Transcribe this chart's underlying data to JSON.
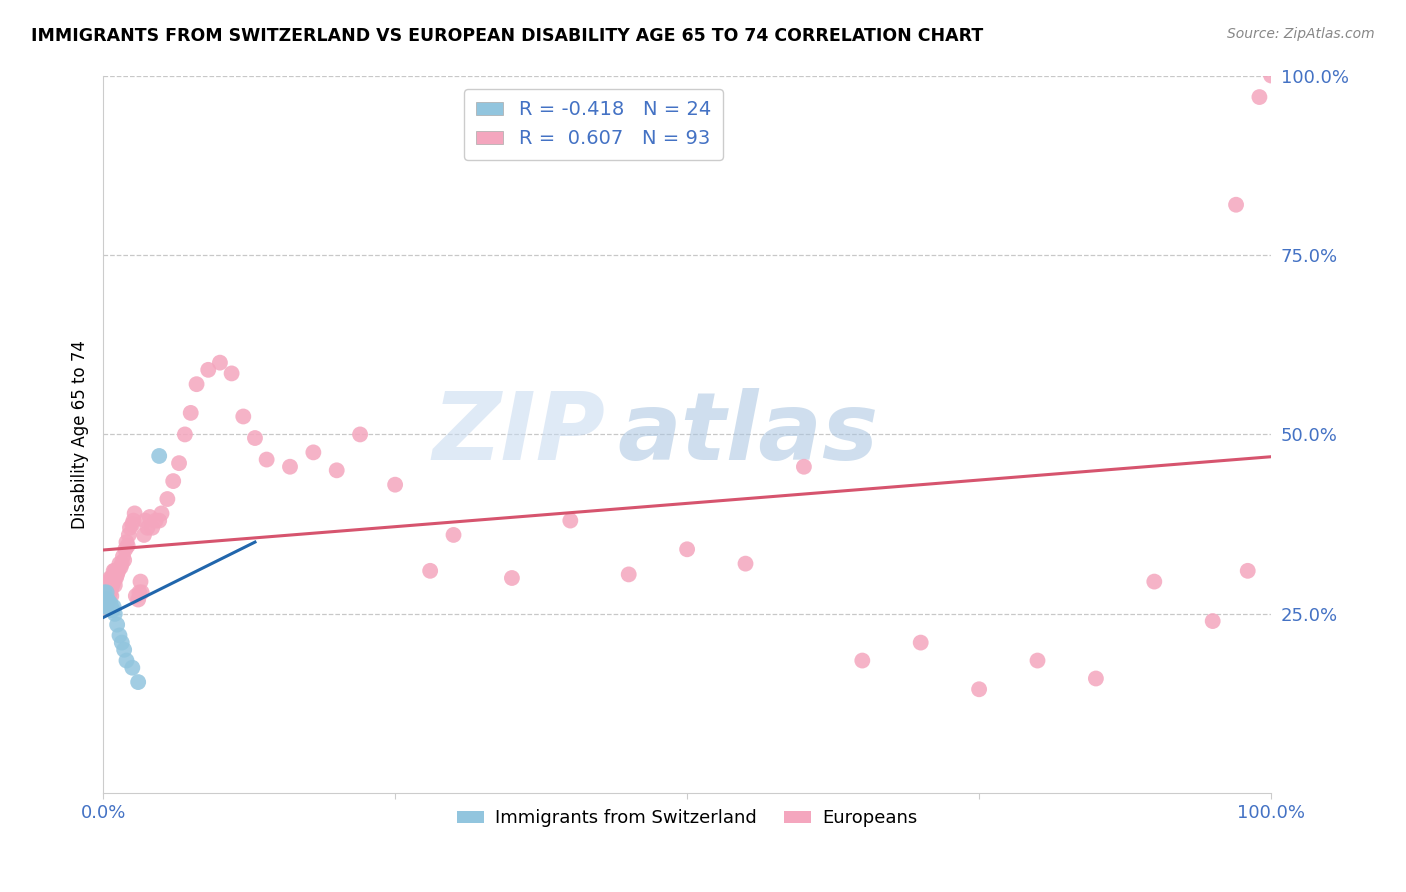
{
  "title": "IMMIGRANTS FROM SWITZERLAND VS EUROPEAN DISABILITY AGE 65 TO 74 CORRELATION CHART",
  "source": "Source: ZipAtlas.com",
  "ylabel": "Disability Age 65 to 74",
  "xlim": [
    0,
    1
  ],
  "ylim": [
    0,
    1
  ],
  "ytick_positions": [
    0.25,
    0.5,
    0.75,
    1.0
  ],
  "ytick_labels": [
    "25.0%",
    "50.0%",
    "75.0%",
    "100.0%"
  ],
  "watermark_zip": "ZIP",
  "watermark_atlas": "atlas",
  "legend_r_swiss": "-0.418",
  "legend_n_swiss": "24",
  "legend_r_euro": "0.607",
  "legend_n_euro": "93",
  "legend_label_swiss": "Immigrants from Switzerland",
  "legend_label_euro": "Europeans",
  "swiss_color": "#92c5de",
  "euro_color": "#f4a6be",
  "swiss_line_color": "#2166ac",
  "euro_line_color": "#d6546e",
  "swiss_x": [
    0.001,
    0.001,
    0.002,
    0.002,
    0.003,
    0.003,
    0.003,
    0.004,
    0.004,
    0.005,
    0.005,
    0.006,
    0.007,
    0.008,
    0.009,
    0.01,
    0.012,
    0.014,
    0.016,
    0.018,
    0.02,
    0.025,
    0.03,
    0.048
  ],
  "swiss_y": [
    0.27,
    0.28,
    0.27,
    0.26,
    0.26,
    0.28,
    0.265,
    0.265,
    0.27,
    0.265,
    0.26,
    0.265,
    0.26,
    0.255,
    0.26,
    0.25,
    0.235,
    0.22,
    0.21,
    0.2,
    0.185,
    0.175,
    0.155,
    0.47
  ],
  "euro_x": [
    0.001,
    0.001,
    0.002,
    0.002,
    0.002,
    0.003,
    0.003,
    0.003,
    0.004,
    0.004,
    0.004,
    0.005,
    0.005,
    0.005,
    0.006,
    0.006,
    0.006,
    0.007,
    0.007,
    0.007,
    0.008,
    0.008,
    0.009,
    0.009,
    0.01,
    0.01,
    0.01,
    0.011,
    0.011,
    0.012,
    0.013,
    0.014,
    0.015,
    0.016,
    0.017,
    0.018,
    0.019,
    0.02,
    0.021,
    0.022,
    0.023,
    0.025,
    0.026,
    0.027,
    0.028,
    0.03,
    0.031,
    0.032,
    0.033,
    0.035,
    0.036,
    0.038,
    0.04,
    0.042,
    0.045,
    0.048,
    0.05,
    0.055,
    0.06,
    0.065,
    0.07,
    0.075,
    0.08,
    0.09,
    0.1,
    0.11,
    0.12,
    0.13,
    0.14,
    0.16,
    0.18,
    0.2,
    0.22,
    0.25,
    0.28,
    0.3,
    0.35,
    0.4,
    0.45,
    0.5,
    0.55,
    0.6,
    0.65,
    0.7,
    0.75,
    0.8,
    0.85,
    0.9,
    0.95,
    0.97,
    0.98,
    0.99,
    1.0
  ],
  "euro_y": [
    0.27,
    0.26,
    0.28,
    0.27,
    0.29,
    0.27,
    0.265,
    0.275,
    0.265,
    0.28,
    0.29,
    0.27,
    0.285,
    0.29,
    0.28,
    0.29,
    0.3,
    0.275,
    0.285,
    0.3,
    0.29,
    0.3,
    0.295,
    0.31,
    0.29,
    0.3,
    0.31,
    0.3,
    0.31,
    0.305,
    0.31,
    0.32,
    0.315,
    0.32,
    0.33,
    0.325,
    0.34,
    0.35,
    0.345,
    0.36,
    0.37,
    0.375,
    0.38,
    0.39,
    0.275,
    0.27,
    0.28,
    0.295,
    0.28,
    0.36,
    0.38,
    0.37,
    0.385,
    0.37,
    0.38,
    0.38,
    0.39,
    0.41,
    0.435,
    0.46,
    0.5,
    0.53,
    0.57,
    0.59,
    0.6,
    0.585,
    0.525,
    0.495,
    0.465,
    0.455,
    0.475,
    0.45,
    0.5,
    0.43,
    0.31,
    0.36,
    0.3,
    0.38,
    0.305,
    0.34,
    0.32,
    0.455,
    0.185,
    0.21,
    0.145,
    0.185,
    0.16,
    0.295,
    0.24,
    0.82,
    0.31,
    0.97,
    1.0
  ]
}
